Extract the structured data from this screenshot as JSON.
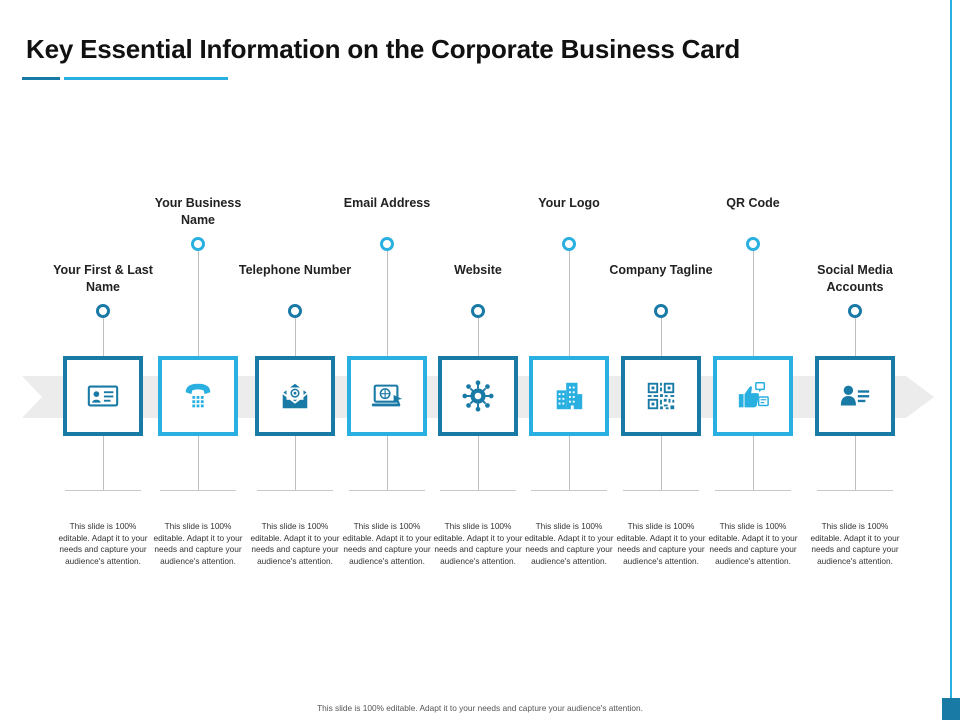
{
  "title": "Key Essential Information on the Corporate Business Card",
  "colors": {
    "dark": "#1a7aa6",
    "light": "#2ab0e0",
    "band": "#ececec"
  },
  "items": [
    {
      "label": "Your First & Last Name",
      "desc": "This slide is 100% editable. Adapt it to your needs and capture your audience's attention.",
      "icon": "id-card-icon"
    },
    {
      "label": "Your Business Name",
      "desc": "This slide is 100% editable. Adapt it to your needs and capture your audience's attention.",
      "icon": "telephone-icon"
    },
    {
      "label": "Telephone Number",
      "desc": "This slide is 100% editable. Adapt it to your needs and capture your audience's attention.",
      "icon": "email-envelope-icon"
    },
    {
      "label": "Email Address",
      "desc": "This slide is 100% editable. Adapt it to your needs and capture your audience's attention.",
      "icon": "website-laptop-icon"
    },
    {
      "label": "Website",
      "desc": "This slide is 100% editable. Adapt it to your needs and capture your audience's attention.",
      "icon": "gear-network-icon"
    },
    {
      "label": "Your Logo",
      "desc": "This slide is 100% editable. Adapt it to your needs and capture your audience's attention.",
      "icon": "building-icon"
    },
    {
      "label": "Company Tagline",
      "desc": "This slide is 100% editable. Adapt it to your needs and capture your audience's attention.",
      "icon": "qr-code-icon"
    },
    {
      "label": "QR Code",
      "desc": "This slide is 100% editable. Adapt it to your needs and capture your audience's attention.",
      "icon": "social-thumbs-up-icon"
    },
    {
      "label": "Social Media Accounts",
      "desc": "This slide is 100% editable. Adapt it to your needs and capture your audience's attention.",
      "icon": "user-profile-icon"
    }
  ],
  "footer": "This slide is 100% editable. Adapt it to your needs and capture your audience's attention."
}
